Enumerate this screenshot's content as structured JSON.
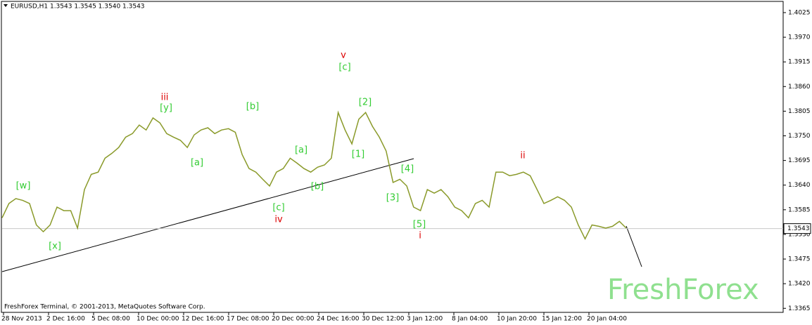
{
  "chart_data": {
    "type": "line",
    "header": "EURUSD,H1  1.3543 1.3545 1.3540 1.3543",
    "footer": "FreshForex Terminal, © 2001-2013, MetaQuotes Software Corp.",
    "watermark": "FreshForex",
    "last_price": 1.3543,
    "ylim": [
      1.3356,
      1.405
    ],
    "yticks": [
      1.4025,
      {
        "value": 1.397,
        "label": "1.3970"
      },
      1.3915,
      {
        "value": 1.386,
        "label": "1.3860"
      },
      1.3805,
      {
        "value": 1.375,
        "label": "1.3750"
      },
      1.3695,
      {
        "value": 1.364,
        "label": "1.3640"
      },
      1.3585,
      {
        "value": 1.353,
        "label": "1.3530"
      },
      1.3475,
      {
        "value": 1.342,
        "label": "1.3420"
      },
      1.3365
    ],
    "xtick_labels": [
      "28 Nov 2013",
      "2 Dec 16:00",
      "5 Dec 08:00",
      "10 Dec 00:00",
      "12 Dec 16:00",
      "17 Dec 08:00",
      "20 Dec 00:00",
      "24 Dec 16:00",
      "30 Dec 12:00",
      "3 Jan 12:00",
      "8 Jan 04:00",
      "10 Jan 20:00",
      "15 Jan 12:00",
      "20 Jan 04:00"
    ],
    "series": [
      {
        "name": "EURUSD",
        "color": "#8a9a2a",
        "values": [
          1.3567,
          1.3599,
          1.361,
          1.3606,
          1.3599,
          1.3551,
          1.3536,
          1.3551,
          1.3591,
          1.3583,
          1.3583,
          1.3544,
          1.363,
          1.3664,
          1.3669,
          1.37,
          1.3711,
          1.3724,
          1.3747,
          1.3755,
          1.3774,
          1.3763,
          1.379,
          1.3779,
          1.3755,
          1.3747,
          1.374,
          1.3724,
          1.3752,
          1.3763,
          1.3768,
          1.3755,
          1.3763,
          1.3766,
          1.3758,
          1.3708,
          1.3677,
          1.3669,
          1.3653,
          1.3638,
          1.3669,
          1.3677,
          1.37,
          1.3689,
          1.3677,
          1.3669,
          1.368,
          1.3685,
          1.37,
          1.3802,
          1.3763,
          1.3732,
          1.3787,
          1.3802,
          1.3771,
          1.3747,
          1.3716,
          1.3646,
          1.3653,
          1.3638,
          1.3591,
          1.3583,
          1.363,
          1.3622,
          1.363,
          1.3614,
          1.3591,
          1.3583,
          1.3567,
          1.3599,
          1.3606,
          1.3591,
          1.3669,
          1.3669,
          1.3661,
          1.3664,
          1.3669,
          1.3661,
          1.363,
          1.3599,
          1.3606,
          1.3614,
          1.3606,
          1.3591,
          1.3551,
          1.352,
          1.3551,
          1.3548,
          1.3544,
          1.3548,
          1.3559,
          1.3544
        ]
      }
    ],
    "annotations": [
      {
        "text": "[w]",
        "color": "#33cc33"
      },
      {
        "text": "[x]",
        "color": "#33cc33"
      },
      {
        "text": "iii",
        "color": "#dd0000"
      },
      {
        "text": "[y]",
        "color": "#33cc33"
      },
      {
        "text": "[a]",
        "color": "#33cc33"
      },
      {
        "text": "[b]",
        "color": "#33cc33"
      },
      {
        "text": "[c]",
        "color": "#33cc33"
      },
      {
        "text": "iv",
        "color": "#dd0000"
      },
      {
        "text": "[a]",
        "color": "#33cc33"
      },
      {
        "text": "[b]",
        "color": "#33cc33"
      },
      {
        "text": "v",
        "color": "#dd0000"
      },
      {
        "text": "[c]",
        "color": "#33cc33"
      },
      {
        "text": "[2]",
        "color": "#33cc33"
      },
      {
        "text": "[1]",
        "color": "#33cc33"
      },
      {
        "text": "[4]",
        "color": "#33cc33"
      },
      {
        "text": "[3]",
        "color": "#33cc33"
      },
      {
        "text": "[5]",
        "color": "#33cc33"
      },
      {
        "text": "i",
        "color": "#dd0000"
      },
      {
        "text": "ii",
        "color": "#dd0000"
      }
    ]
  }
}
